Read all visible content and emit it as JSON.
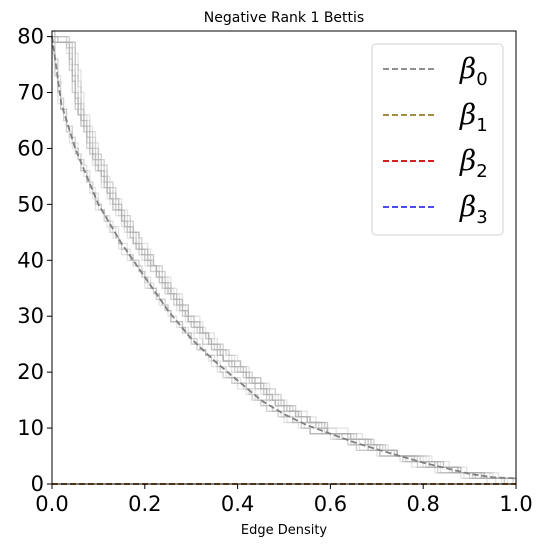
{
  "chart_data": {
    "type": "line",
    "title": "Negative Rank 1 Bettis",
    "xlabel": "Edge Density",
    "ylabel": "",
    "xlim": [
      0.0,
      1.0
    ],
    "ylim": [
      0,
      81
    ],
    "x_ticks": [
      "0.0",
      "0.2",
      "0.4",
      "0.6",
      "0.8",
      "1.0"
    ],
    "y_ticks": [
      "0",
      "10",
      "20",
      "30",
      "40",
      "50",
      "60",
      "70",
      "80"
    ],
    "legend_position": "top-right",
    "grid": false,
    "series": [
      {
        "name": "β0",
        "legend_symbol": "β",
        "legend_sub": "0",
        "color": "#808080",
        "style": "dashed",
        "x": [
          0.0,
          0.02,
          0.05,
          0.1,
          0.15,
          0.2,
          0.25,
          0.3,
          0.35,
          0.4,
          0.45,
          0.5,
          0.55,
          0.6,
          0.65,
          0.7,
          0.75,
          0.8,
          0.85,
          0.9,
          0.95,
          1.0
        ],
        "y": [
          80,
          68,
          60,
          50,
          43,
          37,
          31,
          26,
          22,
          18.5,
          15,
          12.5,
          10.5,
          9,
          7.5,
          6.2,
          5,
          3.8,
          2.8,
          1.8,
          1.2,
          1
        ]
      },
      {
        "name": "β1",
        "legend_symbol": "β",
        "legend_sub": "1",
        "color": "#9a7d2a",
        "style": "dashed",
        "x": [
          0.0,
          1.0
        ],
        "y": [
          0,
          0
        ]
      },
      {
        "name": "β2",
        "legend_symbol": "β",
        "legend_sub": "2",
        "color": "#cc0000",
        "style": "dashed",
        "x": [
          0.0,
          1.0
        ],
        "y": [
          0,
          0
        ]
      },
      {
        "name": "β3",
        "legend_symbol": "β",
        "legend_sub": "3",
        "color": "#3333ee",
        "style": "dashed",
        "x": [
          0.0,
          1.0
        ],
        "y": [
          0,
          0
        ]
      }
    ]
  }
}
